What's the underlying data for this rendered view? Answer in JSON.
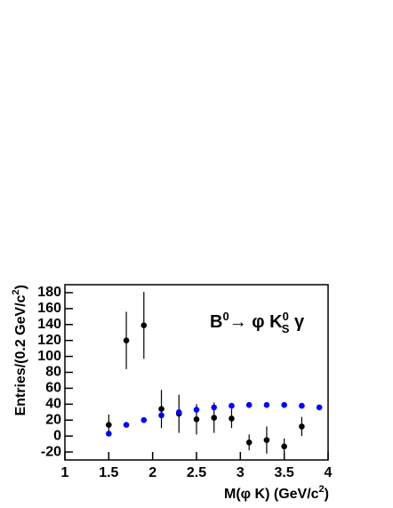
{
  "chart_data": {
    "type": "scatter",
    "annotation": [
      "B",
      "0",
      "→ φ K",
      "0",
      "S",
      " γ"
    ],
    "xlabel": [
      "M(φ K) (GeV/c",
      "2",
      ")"
    ],
    "ylabel": [
      "Entries/(0.2 GeV/c",
      "2",
      ")"
    ],
    "xlim": [
      1,
      4
    ],
    "ylim": [
      -30,
      190
    ],
    "xticks": [
      1,
      1.5,
      2,
      2.5,
      3,
      3.5,
      4
    ],
    "yticks": [
      -20,
      0,
      20,
      40,
      60,
      80,
      100,
      120,
      140,
      160,
      180
    ],
    "series": [
      {
        "color": "#000000",
        "x": [
          1.5,
          1.7,
          1.9,
          2.1,
          2.3,
          2.5,
          2.7,
          2.9,
          3.1,
          3.3,
          3.5,
          3.7
        ],
        "values": [
          14,
          120,
          139,
          34,
          28,
          21,
          23,
          22,
          -8,
          -5,
          -13,
          12
        ],
        "errors": [
          13,
          36,
          42,
          24,
          24,
          19,
          19,
          12,
          10,
          17,
          10,
          12
        ]
      },
      {
        "color": "#0000ff",
        "x": [
          1.5,
          1.7,
          1.9,
          2.1,
          2.3,
          2.5,
          2.7,
          2.9,
          3.1,
          3.3,
          3.5,
          3.7,
          3.9
        ],
        "values": [
          3,
          14,
          20,
          26,
          30,
          33,
          36,
          38,
          39,
          39,
          39,
          38,
          36
        ]
      }
    ]
  }
}
